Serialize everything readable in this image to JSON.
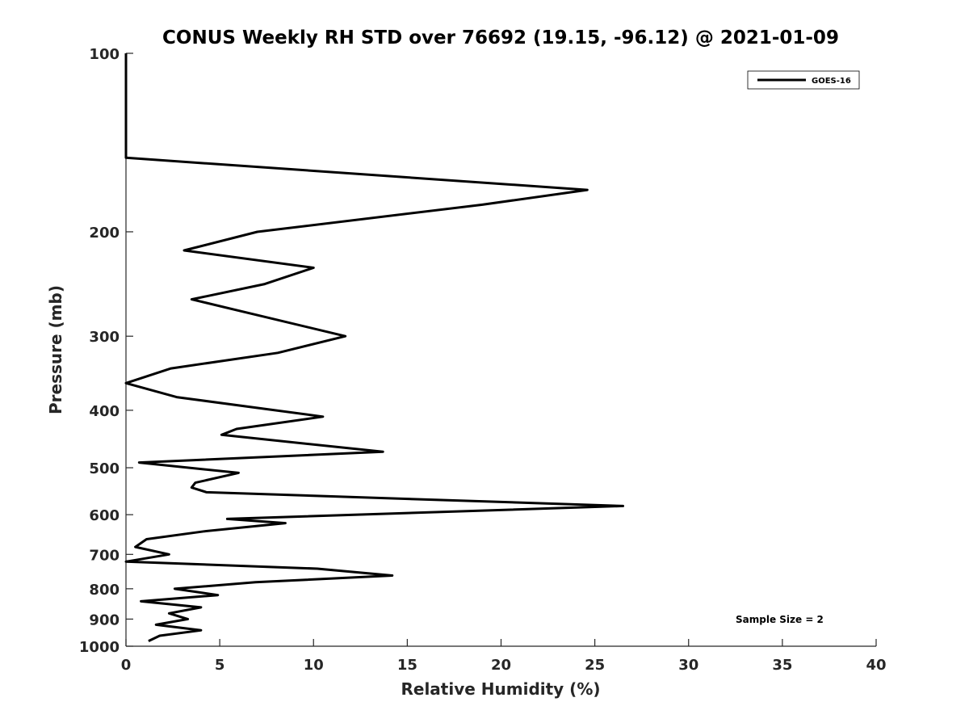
{
  "chart_data": {
    "type": "line",
    "title": "CONUS Weekly RH STD over 76692 (19.15, -96.12) @ 2021-01-09",
    "xlabel": "Relative Humidity (%)",
    "ylabel": "Pressure (mb)",
    "xlim": [
      0,
      40
    ],
    "ylim": [
      100,
      1000
    ],
    "y_scale": "log",
    "y_reversed": true,
    "x_ticks": [
      "0",
      "5",
      "10",
      "15",
      "20",
      "25",
      "30",
      "35",
      "40"
    ],
    "y_ticks": [
      "100",
      "200",
      "300",
      "400",
      "500",
      "600",
      "700",
      "800",
      "900",
      "1000"
    ],
    "grid": false,
    "legend_position": "top-right",
    "annotation": "Sample Size = 2",
    "series": [
      {
        "name": "GOES-16",
        "color": "#000000",
        "points": [
          [
            0.0,
            100
          ],
          [
            0.0,
            125
          ],
          [
            0.0,
            150
          ],
          [
            24.6,
            170
          ],
          [
            19.0,
            180
          ],
          [
            7.0,
            200
          ],
          [
            3.1,
            215
          ],
          [
            10.0,
            230
          ],
          [
            7.4,
            245
          ],
          [
            3.5,
            260
          ],
          [
            11.7,
            300
          ],
          [
            8.1,
            320
          ],
          [
            2.4,
            340
          ],
          [
            0.0,
            360
          ],
          [
            2.7,
            380
          ],
          [
            10.5,
            410
          ],
          [
            5.9,
            430
          ],
          [
            5.1,
            440
          ],
          [
            13.7,
            470
          ],
          [
            0.7,
            490
          ],
          [
            6.0,
            510
          ],
          [
            3.7,
            530
          ],
          [
            3.5,
            540
          ],
          [
            4.3,
            550
          ],
          [
            26.5,
            580
          ],
          [
            5.4,
            610
          ],
          [
            8.5,
            620
          ],
          [
            4.2,
            640
          ],
          [
            1.1,
            660
          ],
          [
            0.5,
            680
          ],
          [
            2.3,
            700
          ],
          [
            0.0,
            720
          ],
          [
            10.2,
            740
          ],
          [
            14.2,
            760
          ],
          [
            6.9,
            780
          ],
          [
            2.6,
            800
          ],
          [
            4.9,
            820
          ],
          [
            0.8,
            840
          ],
          [
            4.0,
            860
          ],
          [
            2.3,
            880
          ],
          [
            3.3,
            900
          ],
          [
            1.6,
            920
          ],
          [
            4.0,
            940
          ],
          [
            1.8,
            960
          ],
          [
            1.2,
            980
          ]
        ]
      }
    ]
  }
}
